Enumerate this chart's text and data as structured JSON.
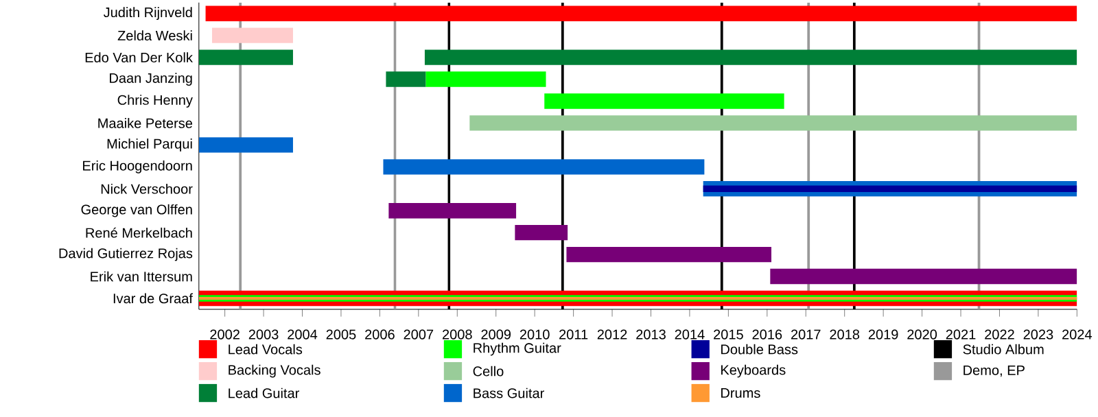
{
  "chart_data": {
    "type": "bar",
    "orientation": "horizontal",
    "categories": [
      "Judith Rijnveld",
      "Zelda Weski",
      "Edo Van Der Kolk",
      "Daan Janzing",
      "Chris Henny",
      "Maaike Peterse",
      "Michiel Parqui",
      "Eric Hoogendoorn",
      "Nick Verschoor",
      "George van Olffen",
      "René Merkelbach",
      "David Gutierrez Rojas",
      "Erik van Ittersum",
      "Ivar de Graaf"
    ],
    "series": [
      {
        "name": "Lead Vocals",
        "color": "#ff0000",
        "base": [
          2001.5,
          null,
          null,
          null,
          null,
          null,
          null,
          null,
          null,
          null,
          null,
          null,
          null,
          2001.33
        ],
        "values": [
          22.5,
          null,
          null,
          null,
          null,
          null,
          null,
          null,
          null,
          null,
          null,
          null,
          null,
          22.67
        ]
      },
      {
        "name": "Backing Vocals",
        "color": "#ffcccc",
        "base": [
          null,
          2001.67,
          null,
          null,
          null,
          null,
          null,
          null,
          null,
          null,
          null,
          null,
          null,
          null
        ],
        "values": [
          null,
          2.09,
          null,
          null,
          null,
          null,
          null,
          null,
          null,
          null,
          null,
          null,
          null,
          null
        ]
      },
      {
        "name": "Lead Guitar",
        "color": "#007f37",
        "base": [
          null,
          null,
          2001.33,
          2006.16,
          null,
          null,
          null,
          null,
          null,
          null,
          null,
          null,
          null,
          null
        ],
        "values": [
          null,
          null,
          2.43,
          1.03,
          null,
          null,
          null,
          null,
          null,
          null,
          null,
          null,
          null,
          null
        ]
      },
      {
        "color": "#007f37",
        "base": [
          null,
          null,
          2007.16,
          null,
          null,
          null,
          null,
          null,
          null,
          null,
          null,
          null,
          null,
          null
        ],
        "values": [
          null,
          null,
          16.84,
          null,
          null,
          null,
          null,
          null,
          null,
          null,
          null,
          null,
          null,
          null
        ]
      },
      {
        "name": "Rhythm Guitar",
        "color": "#00ff00",
        "base": [
          null,
          null,
          null,
          2007.19,
          2010.25,
          null,
          null,
          null,
          null,
          null,
          null,
          null,
          null,
          2001.33
        ],
        "values": [
          null,
          null,
          null,
          3.1,
          6.19,
          null,
          null,
          null,
          null,
          null,
          null,
          null,
          null,
          22.67
        ]
      },
      {
        "name": "Cello",
        "color": "#99cc99",
        "base": [
          null,
          null,
          null,
          null,
          null,
          2008.32,
          null,
          null,
          null,
          null,
          null,
          null,
          null,
          null
        ],
        "values": [
          null,
          null,
          null,
          null,
          null,
          15.68,
          null,
          null,
          null,
          null,
          null,
          null,
          null,
          null
        ]
      },
      {
        "name": "Bass Guitar",
        "color": "#0066cc",
        "base": [
          null,
          null,
          null,
          null,
          null,
          null,
          2001.33,
          2006.09,
          2014.35,
          null,
          null,
          null,
          null,
          null
        ],
        "values": [
          null,
          null,
          null,
          null,
          null,
          null,
          2.43,
          8.29,
          9.65,
          null,
          null,
          null,
          null,
          null
        ]
      },
      {
        "name": "Double Bass",
        "color": "#000099",
        "base": [
          null,
          null,
          null,
          null,
          null,
          null,
          null,
          null,
          2014.35,
          null,
          null,
          null,
          null,
          null
        ],
        "values": [
          null,
          null,
          null,
          null,
          null,
          null,
          null,
          null,
          9.65,
          null,
          null,
          null,
          null,
          null
        ]
      },
      {
        "name": "Keyboards",
        "color": "#770077",
        "base": [
          null,
          null,
          null,
          null,
          null,
          null,
          null,
          null,
          null,
          2006.23,
          2009.49,
          2010.82,
          2016.08,
          null
        ],
        "values": [
          null,
          null,
          null,
          null,
          null,
          null,
          null,
          null,
          null,
          3.29,
          1.36,
          5.29,
          7.92,
          null
        ]
      },
      {
        "name": "Drums",
        "color": "#ff9933",
        "base": [
          null,
          null,
          null,
          null,
          null,
          null,
          null,
          null,
          null,
          null,
          null,
          null,
          null,
          2001.33
        ],
        "values": [
          null,
          null,
          null,
          null,
          null,
          null,
          null,
          null,
          null,
          null,
          null,
          null,
          null,
          22.67
        ]
      }
    ],
    "xlim": [
      2001.33,
      2024
    ],
    "xticks": [
      2002,
      2003,
      2004,
      2005,
      2006,
      2007,
      2008,
      2009,
      2010,
      2011,
      2012,
      2013,
      2014,
      2015,
      2016,
      2017,
      2018,
      2019,
      2020,
      2021,
      2022,
      2023,
      2024
    ],
    "ref_lines": [
      {
        "axis": "x",
        "value": 2007.79,
        "color": "#000000",
        "label": "Studio Album"
      },
      {
        "axis": "x",
        "value": 2010.72,
        "color": "#000000"
      },
      {
        "axis": "x",
        "value": 2014.83,
        "color": "#000000"
      },
      {
        "axis": "x",
        "value": 2018.25,
        "color": "#000000"
      },
      {
        "axis": "x",
        "value": 2002.4,
        "color": "#999999",
        "label": "Demo, EP"
      },
      {
        "axis": "x",
        "value": 2006.39,
        "color": "#999999"
      },
      {
        "axis": "x",
        "value": 2017.07,
        "color": "#999999"
      },
      {
        "axis": "x",
        "value": 2021.47,
        "color": "#999999"
      }
    ],
    "legend": "bottom"
  }
}
